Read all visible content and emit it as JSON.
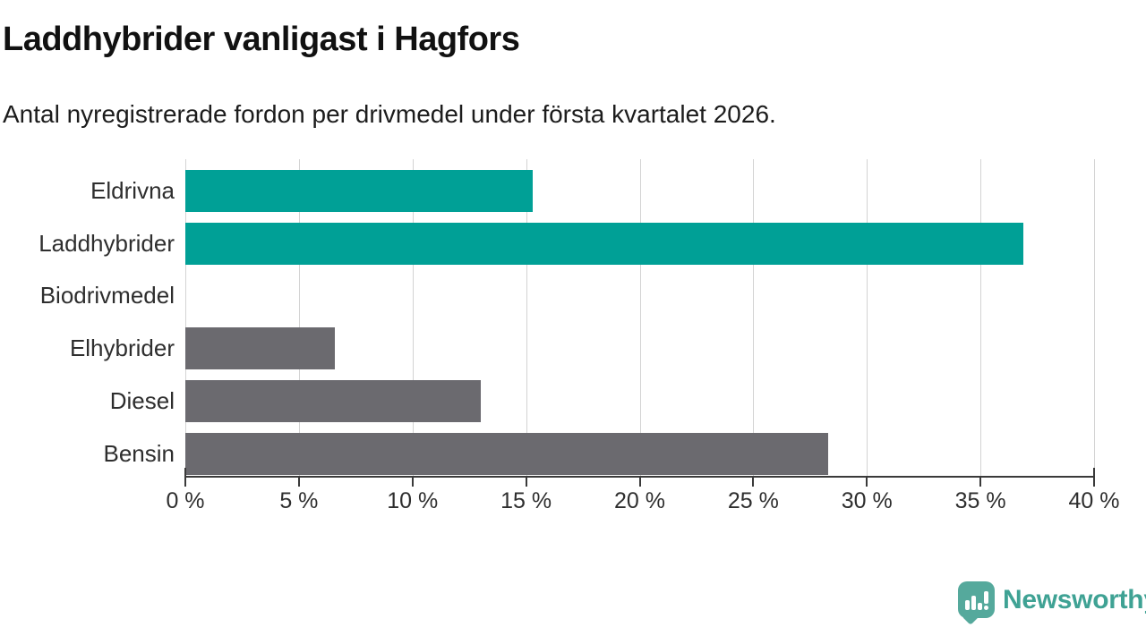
{
  "title": "Laddhybrider vanligast i Hagfors",
  "subtitle": "Antal nyregistrerade fordon per drivmedel under första kvartalet 2026.",
  "chart_data": {
    "type": "bar",
    "orientation": "horizontal",
    "title": "Laddhybrider vanligast i Hagfors",
    "subtitle": "Antal nyregistrerade fordon per drivmedel under första kvartalet 2026.",
    "categories": [
      "Eldrivna",
      "Laddhybrider",
      "Biodrivmedel",
      "Elhybrider",
      "Diesel",
      "Bensin"
    ],
    "values": [
      15.3,
      36.9,
      0,
      6.6,
      13.0,
      28.3
    ],
    "unit": "%",
    "bar_colors": [
      "#00a096",
      "#00a096",
      "#6b6a6f",
      "#6b6a6f",
      "#6b6a6f",
      "#6b6a6f"
    ],
    "highlight_color": "#00a096",
    "default_color": "#6b6a6f",
    "xlim": [
      0,
      40
    ],
    "x_ticks": [
      0,
      5,
      10,
      15,
      20,
      25,
      30,
      35,
      40
    ],
    "x_tick_label_suffix": " %",
    "grid": true,
    "gridline_color": "#d3d3d3",
    "axis_color": "#3a3a3a",
    "legend": "none",
    "background": "#ffffff"
  },
  "branding": {
    "logo_text": "Newsworthy",
    "logo_text_color": "#3fa294",
    "logo_mark_color": "#55a99c",
    "logo_mark_glyph": "bar-chart-exclamation-icon"
  }
}
